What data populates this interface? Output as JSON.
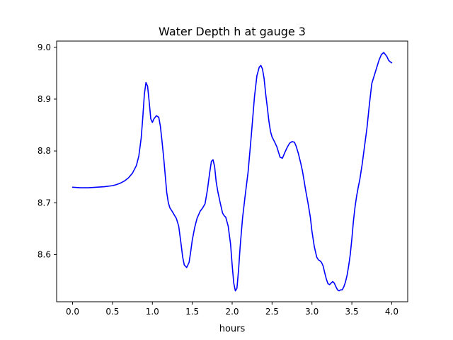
{
  "chart_data": {
    "type": "line",
    "title": "Water Depth h at gauge 3",
    "xlabel": "hours",
    "ylabel": "",
    "xlim": [
      -0.2,
      4.2
    ],
    "ylim": [
      8.509,
      9.012
    ],
    "xticks": [
      0.0,
      0.5,
      1.0,
      1.5,
      2.0,
      2.5,
      3.0,
      3.5,
      4.0
    ],
    "xtick_labels": [
      "0.0",
      "0.5",
      "1.0",
      "1.5",
      "2.0",
      "2.5",
      "3.0",
      "3.5",
      "4.0"
    ],
    "yticks": [
      8.6,
      8.7,
      8.8,
      8.9,
      9.0
    ],
    "ytick_labels": [
      "8.6",
      "8.7",
      "8.8",
      "8.9",
      "9.0"
    ],
    "grid": false,
    "series": [
      {
        "color": "#0000ff",
        "x": [
          0.0,
          0.1,
          0.2,
          0.3,
          0.4,
          0.5,
          0.55,
          0.6,
          0.65,
          0.7,
          0.75,
          0.8,
          0.83,
          0.86,
          0.88,
          0.9,
          0.92,
          0.94,
          0.96,
          0.98,
          1.0,
          1.02,
          1.05,
          1.08,
          1.1,
          1.12,
          1.14,
          1.16,
          1.18,
          1.2,
          1.22,
          1.25,
          1.28,
          1.3,
          1.33,
          1.36,
          1.38,
          1.4,
          1.43,
          1.46,
          1.48,
          1.5,
          1.53,
          1.56,
          1.6,
          1.63,
          1.66,
          1.69,
          1.72,
          1.74,
          1.76,
          1.78,
          1.8,
          1.82,
          1.85,
          1.88,
          1.9,
          1.92,
          1.95,
          1.98,
          2.0,
          2.02,
          2.04,
          2.06,
          2.08,
          2.1,
          2.13,
          2.16,
          2.2,
          2.24,
          2.28,
          2.31,
          2.34,
          2.36,
          2.38,
          2.4,
          2.42,
          2.44,
          2.46,
          2.48,
          2.5,
          2.53,
          2.56,
          2.58,
          2.6,
          2.63,
          2.66,
          2.69,
          2.72,
          2.75,
          2.78,
          2.8,
          2.83,
          2.86,
          2.88,
          2.9,
          2.92,
          2.95,
          2.98,
          3.0,
          3.03,
          3.06,
          3.08,
          3.1,
          3.12,
          3.14,
          3.16,
          3.18,
          3.2,
          3.22,
          3.24,
          3.26,
          3.28,
          3.3,
          3.32,
          3.34,
          3.36,
          3.38,
          3.4,
          3.42,
          3.44,
          3.46,
          3.48,
          3.5,
          3.52,
          3.54,
          3.56,
          3.58,
          3.6,
          3.63,
          3.66,
          3.69,
          3.72,
          3.75,
          3.78,
          3.81,
          3.84,
          3.87,
          3.9,
          3.92,
          3.94,
          3.96,
          3.98,
          4.0
        ],
        "y": [
          8.73,
          8.729,
          8.729,
          8.73,
          8.731,
          8.733,
          8.735,
          8.738,
          8.742,
          8.748,
          8.757,
          8.772,
          8.79,
          8.825,
          8.865,
          8.91,
          8.932,
          8.925,
          8.895,
          8.862,
          8.855,
          8.862,
          8.868,
          8.865,
          8.848,
          8.82,
          8.79,
          8.755,
          8.72,
          8.7,
          8.69,
          8.683,
          8.675,
          8.67,
          8.655,
          8.62,
          8.595,
          8.58,
          8.575,
          8.585,
          8.605,
          8.628,
          8.652,
          8.67,
          8.684,
          8.69,
          8.698,
          8.725,
          8.76,
          8.78,
          8.783,
          8.77,
          8.74,
          8.722,
          8.7,
          8.68,
          8.675,
          8.672,
          8.655,
          8.62,
          8.58,
          8.545,
          8.53,
          8.535,
          8.57,
          8.615,
          8.67,
          8.71,
          8.76,
          8.83,
          8.905,
          8.945,
          8.962,
          8.965,
          8.958,
          8.94,
          8.91,
          8.885,
          8.858,
          8.838,
          8.827,
          8.818,
          8.808,
          8.798,
          8.788,
          8.786,
          8.797,
          8.807,
          8.815,
          8.818,
          8.817,
          8.81,
          8.795,
          8.776,
          8.762,
          8.744,
          8.725,
          8.7,
          8.672,
          8.645,
          8.615,
          8.595,
          8.59,
          8.588,
          8.585,
          8.578,
          8.565,
          8.553,
          8.544,
          8.542,
          8.545,
          8.548,
          8.545,
          8.538,
          8.532,
          8.53,
          8.532,
          8.532,
          8.538,
          8.547,
          8.56,
          8.578,
          8.6,
          8.63,
          8.665,
          8.692,
          8.713,
          8.73,
          8.745,
          8.775,
          8.81,
          8.845,
          8.89,
          8.93,
          8.945,
          8.96,
          8.975,
          8.986,
          8.99,
          8.986,
          8.982,
          8.975,
          8.972,
          8.97
        ]
      }
    ]
  }
}
